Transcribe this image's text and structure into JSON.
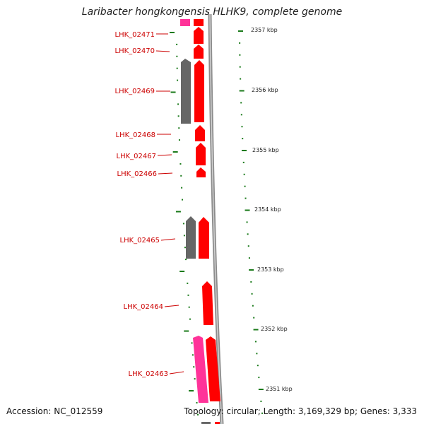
{
  "title": "Laribacter hongkongensis HLHK9, complete genome",
  "accession": "Accession: NC_012559",
  "topology": "Topology: circular; Length: 3,169,329 bp; Genes: 3,333",
  "gene_labels": [
    "LHK_02471",
    "LHK_02470",
    "LHK_02469",
    "LHK_02468",
    "LHK_02467",
    "LHK_02466",
    "LHK_02465",
    "LHK_02464",
    "LHK_02463"
  ],
  "kbp_labels": [
    "2357 kbp",
    "2356 kbp",
    "2355 kbp",
    "2354 kbp",
    "2353 kbp",
    "2352 kbp",
    "2351 kbp"
  ],
  "colors": {
    "gene_forward": "#ff0000",
    "gene_grey": "#666666",
    "gene_pink": "#ff3399",
    "backbone": "#888888",
    "tick": "#1a7a1a",
    "label": "#cc0000"
  }
}
